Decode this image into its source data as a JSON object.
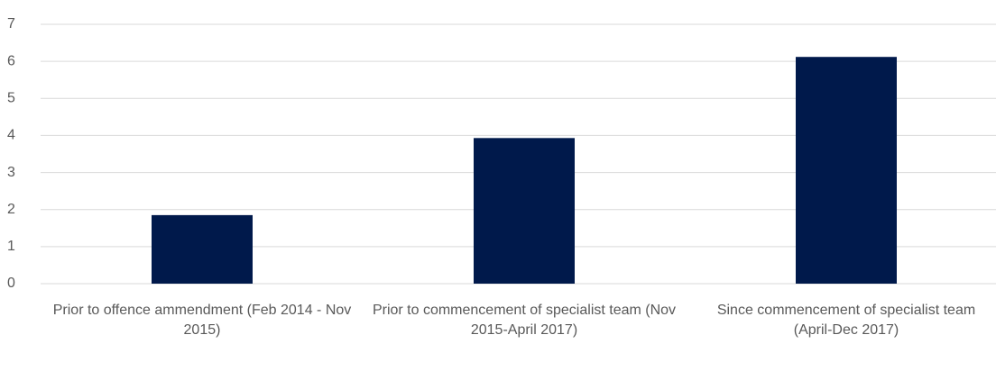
{
  "chart_data": {
    "type": "bar",
    "categories": [
      "Prior to offence ammendment (Feb 2014 - Nov 2015)",
      "Prior to commencement of specialist team (Nov 2015-April 2017)",
      "Since commencement of specialist team (April-Dec 2017)"
    ],
    "values": [
      1.85,
      3.93,
      6.12
    ],
    "color": "#00194b",
    "ylim": [
      0,
      7
    ],
    "yticks": [
      0,
      1,
      2,
      3,
      4,
      5,
      6,
      7
    ],
    "grid": true
  }
}
